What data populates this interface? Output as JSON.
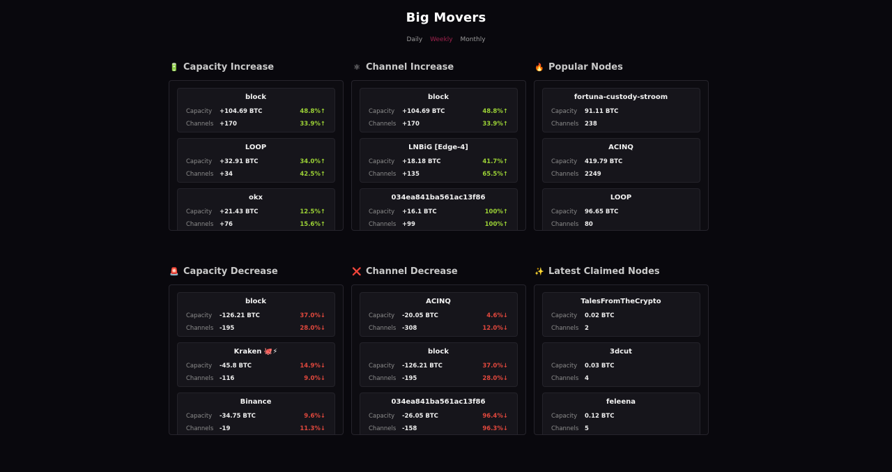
{
  "page": {
    "title": "Big Movers"
  },
  "tabs": [
    {
      "label": "Daily",
      "active": false
    },
    {
      "label": "Weekly",
      "active": true
    },
    {
      "label": "Monthly",
      "active": false
    }
  ],
  "labels": {
    "capacity": "Capacity",
    "channels": "Channels"
  },
  "colors": {
    "accent": "#a0224d",
    "up": "#9bd136",
    "down": "#e0483d",
    "background": "#09080d"
  },
  "panels": [
    {
      "title": "Capacity Increase",
      "icon": "battery-icon",
      "glyph": "🔋",
      "items": [
        {
          "name": "block",
          "capacity": "+104.69 BTC",
          "capacity_pct": "48.8%↑",
          "channels": "+170",
          "channels_pct": "33.9%↑"
        },
        {
          "name": "LOOP",
          "capacity": "+32.91 BTC",
          "capacity_pct": "34.0%↑",
          "channels": "+34",
          "channels_pct": "42.5%↑"
        },
        {
          "name": "okx",
          "capacity": "+21.43 BTC",
          "capacity_pct": "12.5%↑",
          "channels": "+76",
          "channels_pct": "15.6%↑"
        }
      ]
    },
    {
      "title": "Channel Increase",
      "icon": "atom-icon",
      "glyph": "⚛",
      "items": [
        {
          "name": "block",
          "capacity": "+104.69 BTC",
          "capacity_pct": "48.8%↑",
          "channels": "+170",
          "channels_pct": "33.9%↑"
        },
        {
          "name": "LNBiG [Edge-4]",
          "capacity": "+18.18 BTC",
          "capacity_pct": "41.7%↑",
          "channels": "+135",
          "channels_pct": "65.5%↑"
        },
        {
          "name": "034ea841ba561ac13f86",
          "capacity": "+16.1 BTC",
          "capacity_pct": "100%↑",
          "channels": "+99",
          "channels_pct": "100%↑"
        }
      ]
    },
    {
      "title": "Popular Nodes",
      "icon": "fire-icon",
      "glyph": "🔥",
      "items": [
        {
          "name": "fortuna-custody-stroom",
          "capacity": "91.11 BTC",
          "capacity_pct": "",
          "channels": "238",
          "channels_pct": ""
        },
        {
          "name": "ACINQ",
          "capacity": "419.79 BTC",
          "capacity_pct": "",
          "channels": "2249",
          "channels_pct": ""
        },
        {
          "name": "LOOP",
          "capacity": "96.65 BTC",
          "capacity_pct": "",
          "channels": "80",
          "channels_pct": ""
        }
      ]
    },
    {
      "title": "Capacity Decrease",
      "icon": "siren-icon",
      "glyph": "🚨",
      "items": [
        {
          "name": "block",
          "capacity": "-126.21 BTC",
          "capacity_pct": "37.0%↓",
          "channels": "-195",
          "channels_pct": "28.0%↓"
        },
        {
          "name": "Kraken 🐙⚡",
          "capacity": "-45.8 BTC",
          "capacity_pct": "14.9%↓",
          "channels": "-116",
          "channels_pct": "9.0%↓"
        },
        {
          "name": "Binance",
          "capacity": "-34.75 BTC",
          "capacity_pct": "9.6%↓",
          "channels": "-19",
          "channels_pct": "11.3%↓"
        }
      ]
    },
    {
      "title": "Channel Decrease",
      "icon": "cross-mark-icon",
      "glyph": "❌",
      "items": [
        {
          "name": "ACINQ",
          "capacity": "-20.05 BTC",
          "capacity_pct": "4.6%↓",
          "channels": "-308",
          "channels_pct": "12.0%↓"
        },
        {
          "name": "block",
          "capacity": "-126.21 BTC",
          "capacity_pct": "37.0%↓",
          "channels": "-195",
          "channels_pct": "28.0%↓"
        },
        {
          "name": "034ea841ba561ac13f86",
          "capacity": "-26.05 BTC",
          "capacity_pct": "96.4%↓",
          "channels": "-158",
          "channels_pct": "96.3%↓"
        }
      ]
    },
    {
      "title": "Latest Claimed Nodes",
      "icon": "sparkles-icon",
      "glyph": "✨",
      "items": [
        {
          "name": "TalesFromTheCrypto",
          "capacity": "0.02 BTC",
          "capacity_pct": "",
          "channels": "2",
          "channels_pct": ""
        },
        {
          "name": "3dcut",
          "capacity": "0.03 BTC",
          "capacity_pct": "",
          "channels": "4",
          "channels_pct": ""
        },
        {
          "name": "feleena",
          "capacity": "0.12 BTC",
          "capacity_pct": "",
          "channels": "5",
          "channels_pct": ""
        }
      ]
    }
  ]
}
